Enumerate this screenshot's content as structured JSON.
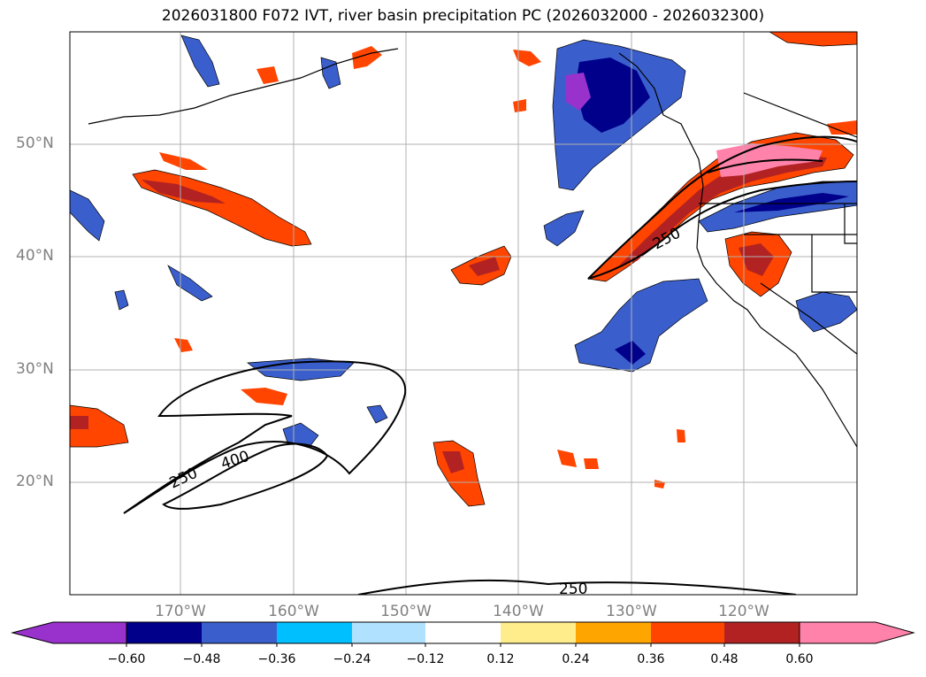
{
  "title": "2026031800 F072 IVT, river basin precipitation PC (2026032000 - 2026032300)",
  "lat_labels": [
    "50°N",
    "40°N",
    "30°N",
    "20°N"
  ],
  "lon_labels": [
    "170°W",
    "160°W",
    "150°W",
    "140°W",
    "130°W",
    "120°W"
  ],
  "contour_labels": [
    "250",
    "400",
    "250",
    "250"
  ],
  "colorbar": {
    "ticks": [
      "−0.60",
      "−0.48",
      "−0.36",
      "−0.24",
      "−0.12",
      "0.12",
      "0.24",
      "0.36",
      "0.48",
      "0.60"
    ],
    "colors": [
      "#9932cc",
      "#00008b",
      "#3a5fcd",
      "#00bfff",
      "#b0e2ff",
      "#ffffff",
      "#ffec8b",
      "#ffa500",
      "#ff4500",
      "#b22222",
      "#ff82ab"
    ]
  },
  "colors": {
    "strong_negative": "#00008b",
    "negative": "#3a5fcd",
    "positive": "#ff4500",
    "strong_positive": "#b22222",
    "contour": "#000000",
    "grid": "#b0b0b0"
  }
}
